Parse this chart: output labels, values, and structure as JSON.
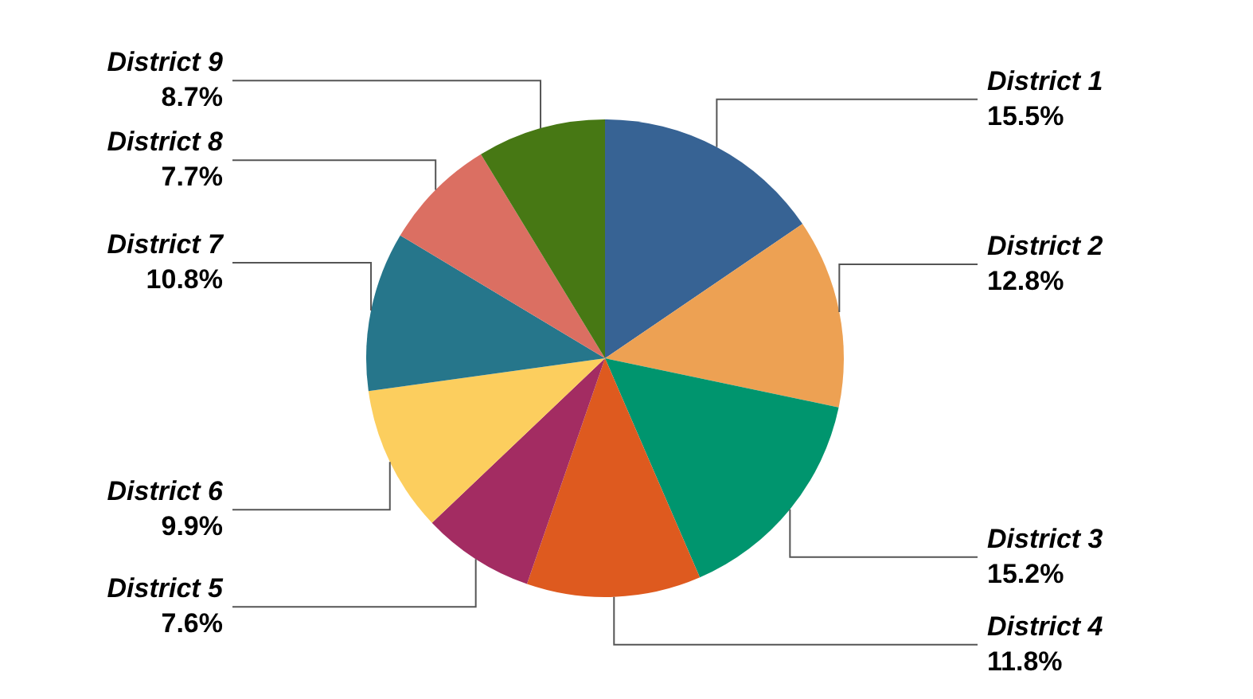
{
  "chart_data": {
    "type": "pie",
    "categories": [
      "District 1",
      "District 2",
      "District 3",
      "District 4",
      "District 5",
      "District 6",
      "District 7",
      "District 8",
      "District 9"
    ],
    "values": [
      15.5,
      12.8,
      15.2,
      11.8,
      7.6,
      9.9,
      10.8,
      7.7,
      8.7
    ],
    "value_labels": [
      "15.5%",
      "12.8%",
      "15.2%",
      "11.8%",
      "7.6%",
      "9.9%",
      "10.8%",
      "7.7%",
      "8.7%"
    ],
    "colors": [
      "#376394",
      "#eda153",
      "#00956e",
      "#de5a1f",
      "#a32c62",
      "#fcce5e",
      "#26768b",
      "#db6f62",
      "#477814"
    ]
  }
}
